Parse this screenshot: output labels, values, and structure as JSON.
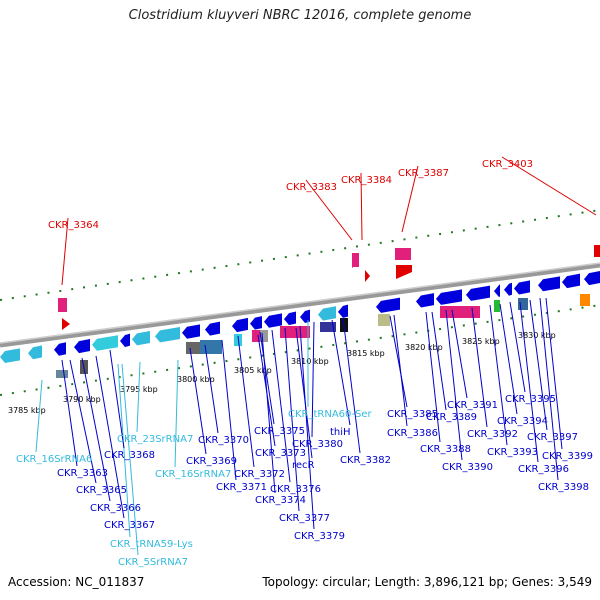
{
  "title": "Clostridium kluyveri NBRC 12016, complete genome",
  "footer": {
    "accession": "Accession: NC_011837",
    "summary": "Topology: circular; Length: 3,896,121 bp; Genes: 3,549"
  },
  "kbp_labels": [
    "3785 kbp",
    "3790 kbp",
    "3795 kbp",
    "3800 kbp",
    "3805 kbp",
    "3810 kbp",
    "3815 kbp",
    "3820 kbp",
    "3825 kbp",
    "3830 kbp"
  ],
  "red_labels": [
    "CKR_3364",
    "CKR_3383",
    "CKR_3384",
    "CKR_3387",
    "CKR_3403"
  ],
  "cyan_labels": [
    "CKR_16SrRNA6",
    "CKR_23SrRNA7",
    "CKR_16SrRNA7",
    "CKR_tRNA59-Lys",
    "CKR_5SrRNA7",
    "CKR_tRNA60-Ser"
  ],
  "blue_labels": [
    "CKR_3363",
    "CKR_3365",
    "CKR_3366",
    "CKR_3367",
    "CKR_3368",
    "CKR_3369",
    "CKR_3370",
    "CKR_3371",
    "CKR_3372",
    "CKR_3373",
    "CKR_3374",
    "CKR_3375",
    "CKR_3376",
    "CKR_3377",
    "CKR_3379",
    "recR",
    "CKR_3380",
    "thiH",
    "CKR_3382",
    "CKR_3385",
    "CKR_3386",
    "CKR_3388",
    "CKR_3389",
    "CKR_3390",
    "CKR_3391",
    "CKR_3392",
    "CKR_3393",
    "CKR_3394",
    "CKR_3395",
    "CKR_3396",
    "CKR_3397",
    "CKR_3398",
    "CKR_3399"
  ],
  "colors": {
    "red": "#dd0000",
    "cyan": "#33bbdd",
    "blue": "#0000cc",
    "backbone": "#888888",
    "tick": "#227722"
  }
}
